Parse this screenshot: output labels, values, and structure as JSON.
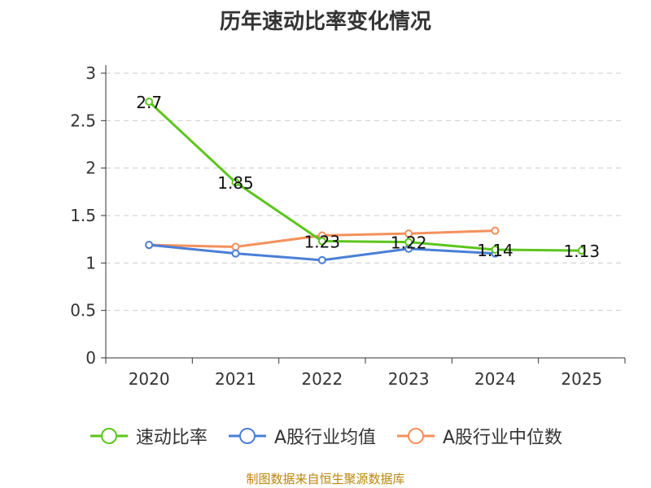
{
  "chart_data": {
    "type": "line",
    "title": "历年速动比率变化情况",
    "categories": [
      "2020",
      "2021",
      "2022",
      "2023",
      "2024",
      "2025"
    ],
    "ylim": [
      0,
      3
    ],
    "yticks": [
      "0",
      "0.5",
      "1",
      "1.5",
      "2",
      "2.5",
      "3"
    ],
    "grid": true,
    "legend_position": "bottom",
    "series": [
      {
        "name": "速动比率",
        "color": "#5cc51c",
        "values": [
          2.7,
          1.85,
          1.23,
          1.22,
          1.14,
          1.13
        ],
        "labels": [
          "2.7",
          "1.85",
          "1.23",
          "1.22",
          "1.14",
          "1.13"
        ]
      },
      {
        "name": "A股行业均值",
        "color": "#4a7fd6",
        "values": [
          1.19,
          1.1,
          1.03,
          1.15,
          1.1,
          null
        ]
      },
      {
        "name": "A股行业中位数",
        "color": "#f4905c",
        "values": [
          1.19,
          1.17,
          1.29,
          1.31,
          1.34,
          null
        ]
      }
    ],
    "source": "制图数据来自恒生聚源数据库"
  }
}
